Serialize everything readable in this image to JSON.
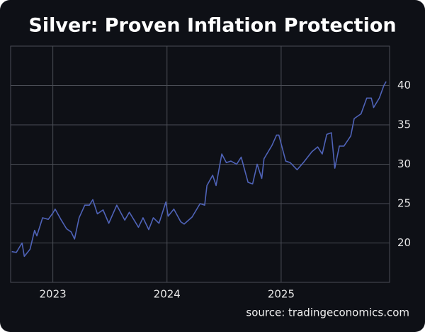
{
  "chart_data": {
    "type": "line",
    "title": "Silver: Proven Inflation Protection",
    "source": "source: tradingeconomics.com",
    "x": [
      2022.64,
      2022.68,
      2022.73,
      2022.75,
      2022.8,
      2022.84,
      2022.86,
      2022.91,
      2022.96,
      2023.0,
      2023.02,
      2023.07,
      2023.12,
      2023.16,
      2023.19,
      2023.23,
      2023.28,
      2023.32,
      2023.35,
      2023.39,
      2023.44,
      2023.49,
      2023.56,
      2023.63,
      2023.67,
      2023.75,
      2023.79,
      2023.84,
      2023.88,
      2023.93,
      2023.99,
      2024.01,
      2024.06,
      2024.12,
      2024.15,
      2024.22,
      2024.29,
      2024.33,
      2024.35,
      2024.4,
      2024.43,
      2024.48,
      2024.52,
      2024.56,
      2024.61,
      2024.65,
      2024.71,
      2024.75,
      2024.79,
      2024.83,
      2024.85,
      2024.92,
      2024.96,
      2024.98,
      2025.04,
      2025.08,
      2025.14,
      2025.2,
      2025.27,
      2025.32,
      2025.36,
      2025.4,
      2025.44,
      2025.47,
      2025.51,
      2025.55,
      2025.61,
      2025.64,
      2025.7,
      2025.75,
      2025.79,
      2025.81,
      2025.86,
      2025.9,
      2025.92
    ],
    "series": [
      {
        "name": "Silver",
        "color": "#4f63b8",
        "values": [
          18.9,
          18.8,
          20.0,
          18.3,
          19.2,
          21.6,
          20.9,
          23.2,
          23.0,
          23.8,
          24.3,
          23.0,
          21.8,
          21.4,
          20.5,
          23.2,
          24.8,
          24.8,
          25.5,
          23.7,
          24.2,
          22.5,
          24.8,
          22.9,
          23.9,
          22.0,
          23.2,
          21.7,
          23.2,
          22.5,
          25.2,
          23.4,
          24.3,
          22.7,
          22.4,
          23.3,
          25.0,
          24.8,
          27.3,
          28.6,
          27.3,
          31.3,
          30.2,
          30.4,
          30.0,
          30.9,
          27.7,
          27.5,
          30.0,
          28.2,
          30.7,
          32.4,
          33.7,
          33.7,
          30.4,
          30.2,
          29.3,
          30.3,
          31.6,
          32.2,
          31.3,
          33.8,
          34.0,
          29.5,
          32.3,
          32.3,
          33.6,
          35.8,
          36.4,
          38.4,
          38.4,
          37.2,
          38.4,
          40.0,
          40.5
        ]
      }
    ],
    "xlim": [
      2022.63,
      2025.95
    ],
    "xticks": [
      2023,
      2024,
      2025
    ],
    "ylim": [
      15,
      45
    ],
    "yticks": [
      20,
      25,
      30,
      35,
      40
    ],
    "grid": true
  }
}
